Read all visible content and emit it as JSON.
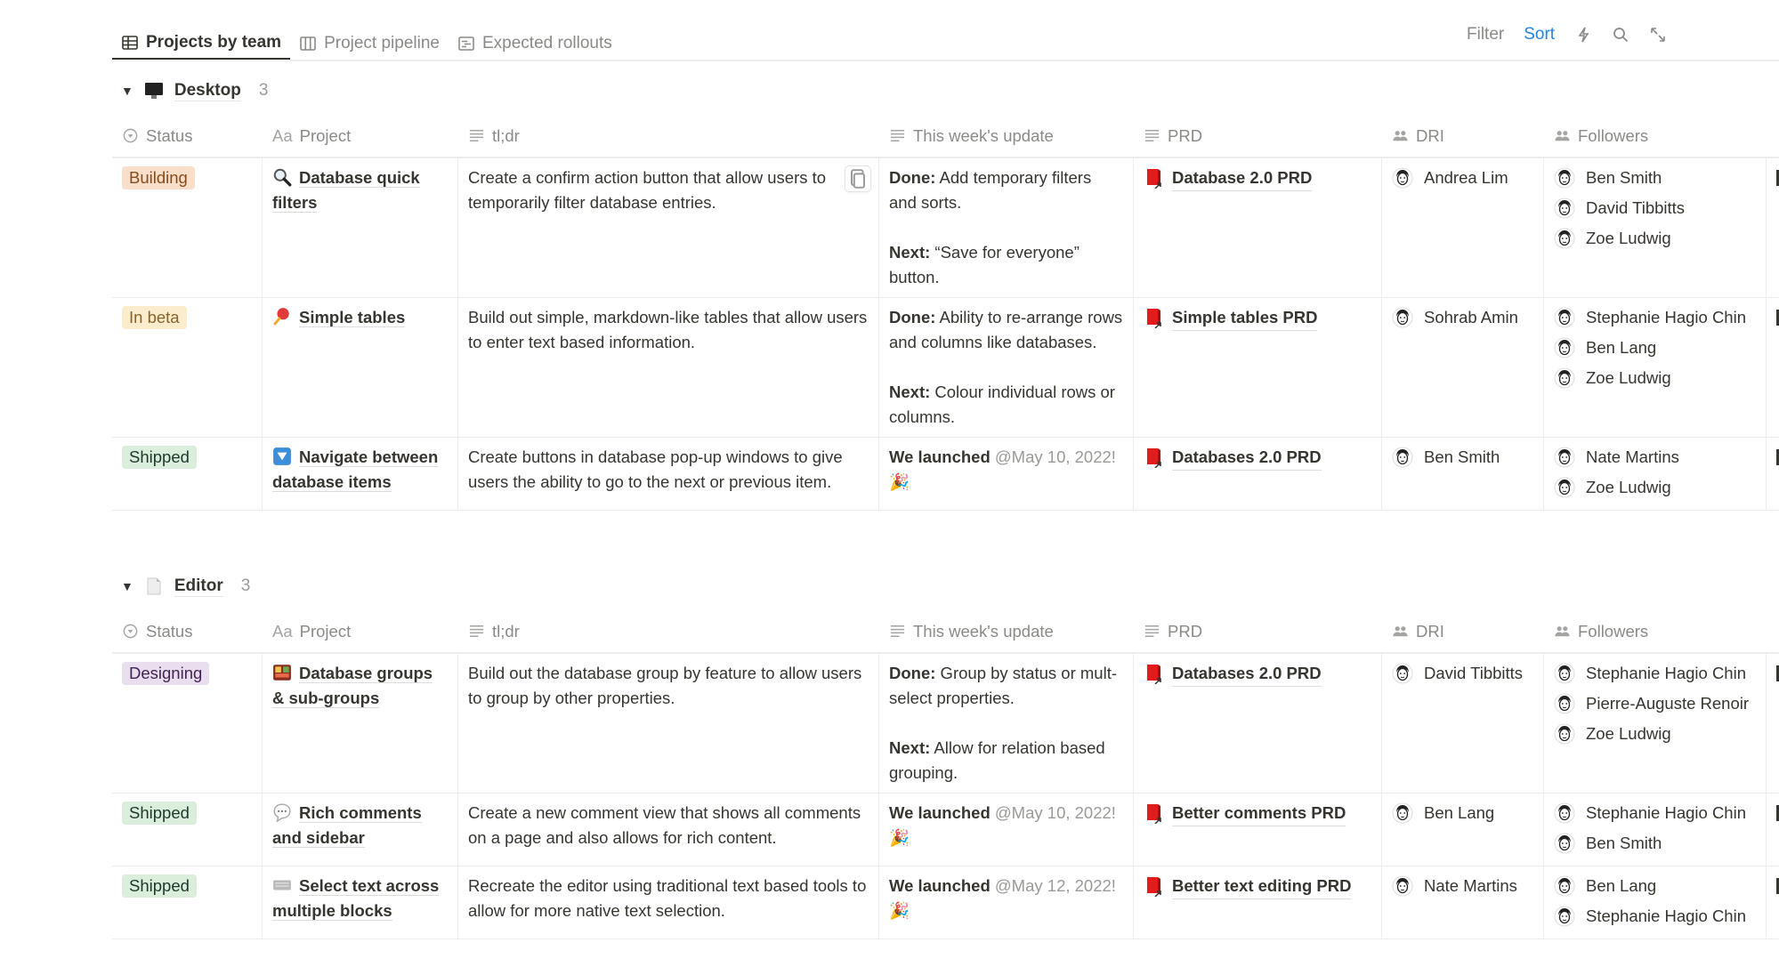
{
  "tabs": [
    {
      "label": "Projects by team",
      "icon": "table-icon",
      "active": true
    },
    {
      "label": "Project pipeline",
      "icon": "board-icon",
      "active": false
    },
    {
      "label": "Expected rollouts",
      "icon": "timeline-icon",
      "active": false
    }
  ],
  "toolbar": {
    "filter": "Filter",
    "sort": "Sort",
    "sort_color": "#2383e2",
    "icons": [
      "lightning-icon",
      "search-icon",
      "expand-icon"
    ]
  },
  "columns": [
    {
      "label": "Status",
      "icon": "status-icon"
    },
    {
      "label": "Project",
      "icon": "title-icon",
      "prefix": "Aa"
    },
    {
      "label": "tl;dr",
      "icon": "text-icon"
    },
    {
      "label": "This week's update",
      "icon": "text-icon"
    },
    {
      "label": "PRD",
      "icon": "text-icon"
    },
    {
      "label": "DRI",
      "icon": "people-icon"
    },
    {
      "label": "Followers",
      "icon": "people-icon"
    }
  ],
  "status_colors": {
    "Building": {
      "bg": "#fadec9",
      "fg": "#854c1d"
    },
    "In beta": {
      "bg": "#fbeccd",
      "fg": "#89632a"
    },
    "Shipped": {
      "bg": "#dbeddb",
      "fg": "#1c3829"
    },
    "Designing": {
      "bg": "#e8deee",
      "fg": "#412454"
    }
  },
  "groups": [
    {
      "name": "Desktop",
      "icon": "desktop-computer-icon",
      "count": "3",
      "rows": [
        {
          "status": "Building",
          "project": "Database quick filters",
          "project_icon": "magnifier-icon",
          "tldr": "Create a confirm action button that allow users to temporarily filter database entries.",
          "update": [
            {
              "label": "Done:",
              "text": " Add temporary filters and sorts."
            },
            {
              "label": "Next:",
              "text": " “Save for everyone” button."
            }
          ],
          "prd": "Database 2.0 PRD",
          "dri": "Andrea Lim",
          "followers": [
            "Ben Smith",
            "David Tibbitts",
            "Zoe Ludwig"
          ]
        },
        {
          "status": "In beta",
          "project": "Simple tables",
          "project_icon": "pushpin-icon",
          "tldr": "Build out simple, markdown-like tables that allow users to enter text based information.",
          "update": [
            {
              "label": "Done:",
              "text": " Ability to re-arrange rows and columns like databases."
            },
            {
              "label": "Next:",
              "text": " Colour individual rows or columns."
            }
          ],
          "prd": "Simple tables PRD",
          "dri": "Sohrab Amin",
          "followers": [
            "Stephanie Hagio Chin",
            "Ben Lang",
            "Zoe Ludwig"
          ]
        },
        {
          "status": "Shipped",
          "project": "Navigate between database items",
          "project_icon": "down-arrow-button-icon",
          "tldr": "Create buttons in database pop-up windows to give users the ability to go to the next or previous item.",
          "update": [
            {
              "label": "We launched",
              "mention": " @May 10, 2022!",
              "emoji": "party-popper-icon"
            }
          ],
          "prd": "Databases 2.0 PRD",
          "dri": "Ben Smith",
          "followers": [
            "Nate Martins",
            "Zoe Ludwig"
          ]
        }
      ]
    },
    {
      "name": "Editor",
      "icon": "document-icon",
      "count": "3",
      "rows": [
        {
          "status": "Designing",
          "project": "Database groups & sub-groups",
          "project_icon": "bento-box-icon",
          "tldr": "Build out the database group by feature to allow users to group by other properties.",
          "update": [
            {
              "label": "Done:",
              "text": " Group by status or mult-select properties."
            },
            {
              "label": "Next:",
              "text": " Allow for relation based grouping."
            }
          ],
          "prd": "Databases 2.0 PRD",
          "dri": "David Tibbitts",
          "followers": [
            "Stephanie Hagio Chin",
            "Pierre-Auguste Renoir",
            "Zoe Ludwig"
          ]
        },
        {
          "status": "Shipped",
          "project": "Rich comments and sidebar",
          "project_icon": "speech-bubble-icon",
          "tldr": "Create a new comment view that shows all comments on a page and also allows for rich content.",
          "update": [
            {
              "label": "We launched",
              "mention": " @May 10, 2022!",
              "emoji": "party-popper-icon"
            }
          ],
          "prd": "Better comments PRD",
          "dri": "Ben Lang",
          "followers": [
            "Stephanie Hagio Chin",
            "Ben Smith"
          ]
        },
        {
          "status": "Shipped",
          "project": "Select text across multiple blocks",
          "project_icon": "keyboard-icon",
          "tldr": "Recreate the editor using traditional text based tools to allow for more native text selection.",
          "update": [
            {
              "label": "We launched",
              "mention": " @May 12, 2022!",
              "emoji": "party-popper-icon"
            }
          ],
          "prd": "Better text editing PRD",
          "dri": "Nate Martins",
          "followers": [
            "Ben Lang",
            "Stephanie Hagio Chin"
          ]
        }
      ]
    }
  ]
}
